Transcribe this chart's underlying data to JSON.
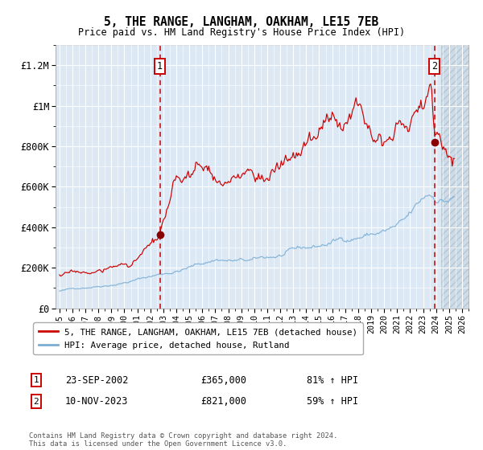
{
  "title": "5, THE RANGE, LANGHAM, OAKHAM, LE15 7EB",
  "subtitle": "Price paid vs. HM Land Registry's House Price Index (HPI)",
  "background_color": "#dce9f5",
  "red_line_color": "#cc0000",
  "blue_line_color": "#7aadd4",
  "marker_color": "#880000",
  "ylim": [
    0,
    1300000
  ],
  "xlim_start": 1994.7,
  "xlim_end": 2026.5,
  "yticks": [
    0,
    200000,
    400000,
    600000,
    800000,
    1000000,
    1200000
  ],
  "ytick_labels": [
    "£0",
    "£200K",
    "£400K",
    "£600K",
    "£800K",
    "£1M",
    "£1.2M"
  ],
  "xtick_years": [
    1995,
    1996,
    1997,
    1998,
    1999,
    2000,
    2001,
    2002,
    2003,
    2004,
    2005,
    2006,
    2007,
    2008,
    2009,
    2010,
    2011,
    2012,
    2013,
    2014,
    2015,
    2016,
    2017,
    2018,
    2019,
    2020,
    2021,
    2022,
    2023,
    2024,
    2025,
    2026
  ],
  "purchase1_x": 2002.73,
  "purchase1_y": 365000,
  "purchase2_x": 2023.87,
  "purchase2_y": 821000,
  "hatch_start": 2024.42,
  "legend_entry1": "5, THE RANGE, LANGHAM, OAKHAM, LE15 7EB (detached house)",
  "legend_entry2": "HPI: Average price, detached house, Rutland",
  "ann1_num": "1",
  "ann1_date": "23-SEP-2002",
  "ann1_price": "£365,000",
  "ann1_hpi": "81% ↑ HPI",
  "ann2_num": "2",
  "ann2_date": "10-NOV-2023",
  "ann2_price": "£821,000",
  "ann2_hpi": "59% ↑ HPI",
  "footer": "Contains HM Land Registry data © Crown copyright and database right 2024.\nThis data is licensed under the Open Government Licence v3.0."
}
